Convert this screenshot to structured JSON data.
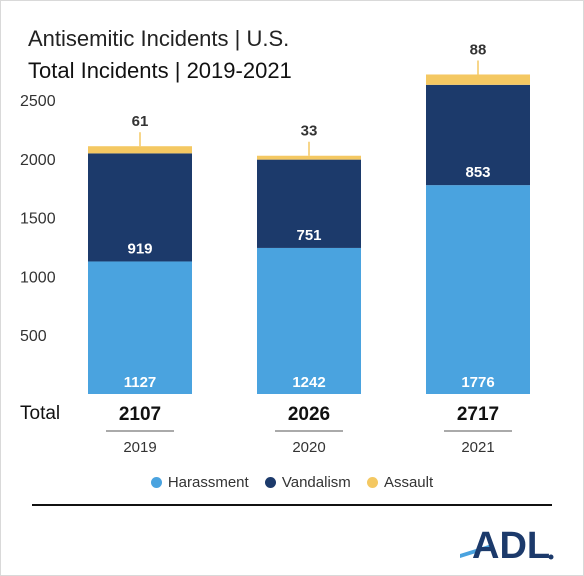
{
  "title": "Antisemitic Incidents | U.S.",
  "subtitle": "Total Incidents | 2019-2021",
  "total_label": "Total",
  "logo_text": "ADL",
  "colors": {
    "harassment": "#4aa3df",
    "vandalism": "#1c3a6b",
    "assault": "#f4c862"
  },
  "chart_data": {
    "type": "bar",
    "stacked": true,
    "title": "Antisemitic Incidents | U.S.",
    "subtitle": "Total Incidents | 2019-2021",
    "categories": [
      "2019",
      "2020",
      "2021"
    ],
    "series": [
      {
        "name": "Harassment",
        "values": [
          1127,
          1242,
          1776
        ],
        "color": "#4aa3df"
      },
      {
        "name": "Vandalism",
        "values": [
          919,
          751,
          853
        ],
        "color": "#1c3a6b"
      },
      {
        "name": "Assault",
        "values": [
          61,
          33,
          88
        ],
        "color": "#f4c862"
      }
    ],
    "totals": [
      2107,
      2026,
      2717
    ],
    "yticks": [
      500,
      1000,
      1500,
      2000,
      2500
    ],
    "legend": "bottom",
    "grid": false
  }
}
